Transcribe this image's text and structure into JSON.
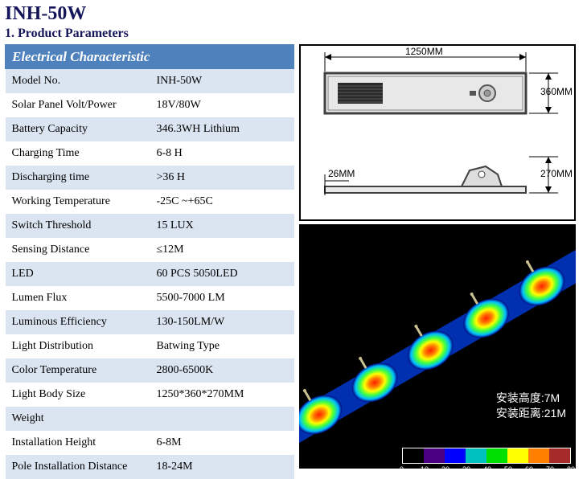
{
  "title": "INH-50W",
  "section_label": "1. Product Parameters",
  "table_header": "Electrical Characteristic",
  "row_odd_bg": "#dbe5f1",
  "row_even_bg": "#ffffff",
  "header_bg": "#4f81bd",
  "rows": [
    {
      "label": "Model No.",
      "value": "INH-50W"
    },
    {
      "label": "Solar Panel Volt/Power",
      "value": "18V/80W"
    },
    {
      "label": "Battery Capacity",
      "value": "346.3WH Lithium"
    },
    {
      "label": "Charging Time",
      "value": "6-8 H"
    },
    {
      "label": "Discharging time",
      "value": ">36 H"
    },
    {
      "label": "Working Temperature",
      "value": "-25C ~+65C"
    },
    {
      "label": "Switch Threshold",
      "value": "15 LUX"
    },
    {
      "label": "Sensing Distance",
      "value": "≤12M"
    },
    {
      "label": "LED",
      "value": "60 PCS 5050LED"
    },
    {
      "label": "Lumen Flux",
      "value": "5500-7000 LM"
    },
    {
      "label": "Luminous Efficiency",
      "value": "130-150LM/W"
    },
    {
      "label": "Light Distribution",
      "value": "Batwing Type"
    },
    {
      "label": "Color Temperature",
      "value": "2800-6500K"
    },
    {
      "label": "Light Body Size",
      "value": "1250*360*270MM"
    },
    {
      "label": "Weight",
      "value": ""
    },
    {
      "label": "Installation Height",
      "value": "6-8M"
    },
    {
      "label": "Pole Installation Distance",
      "value": "18-24M"
    }
  ],
  "diagram": {
    "length": "1250MM",
    "height": "360MM",
    "depth": "270MM",
    "offset": "26MM",
    "fixture_fill": "#e0e0e0",
    "fixture_stroke": "#404040",
    "grille_fill": "#2a2a2a",
    "arrow_stroke": "#000000"
  },
  "heatmap": {
    "background": "#000000",
    "strip_gradient": [
      "#0000c0",
      "#4040ff",
      "#00d0d0",
      "#00e060",
      "#c0ff40",
      "#ffff00",
      "#ff8000",
      "#ff0000"
    ],
    "install_height_label": "安装高度:",
    "install_height_value": "7M",
    "install_distance_label": "安装距离:",
    "install_distance_value": "21M",
    "legend_ticks": [
      "0",
      "10",
      "20",
      "30",
      "40",
      "50",
      "60",
      "70",
      "80"
    ],
    "legend_colors": [
      "#000000",
      "#4b0082",
      "#0000ff",
      "#00c0c0",
      "#00e000",
      "#ffff00",
      "#ff8000",
      "#a52a2a"
    ],
    "legend_unit": "Lx"
  }
}
